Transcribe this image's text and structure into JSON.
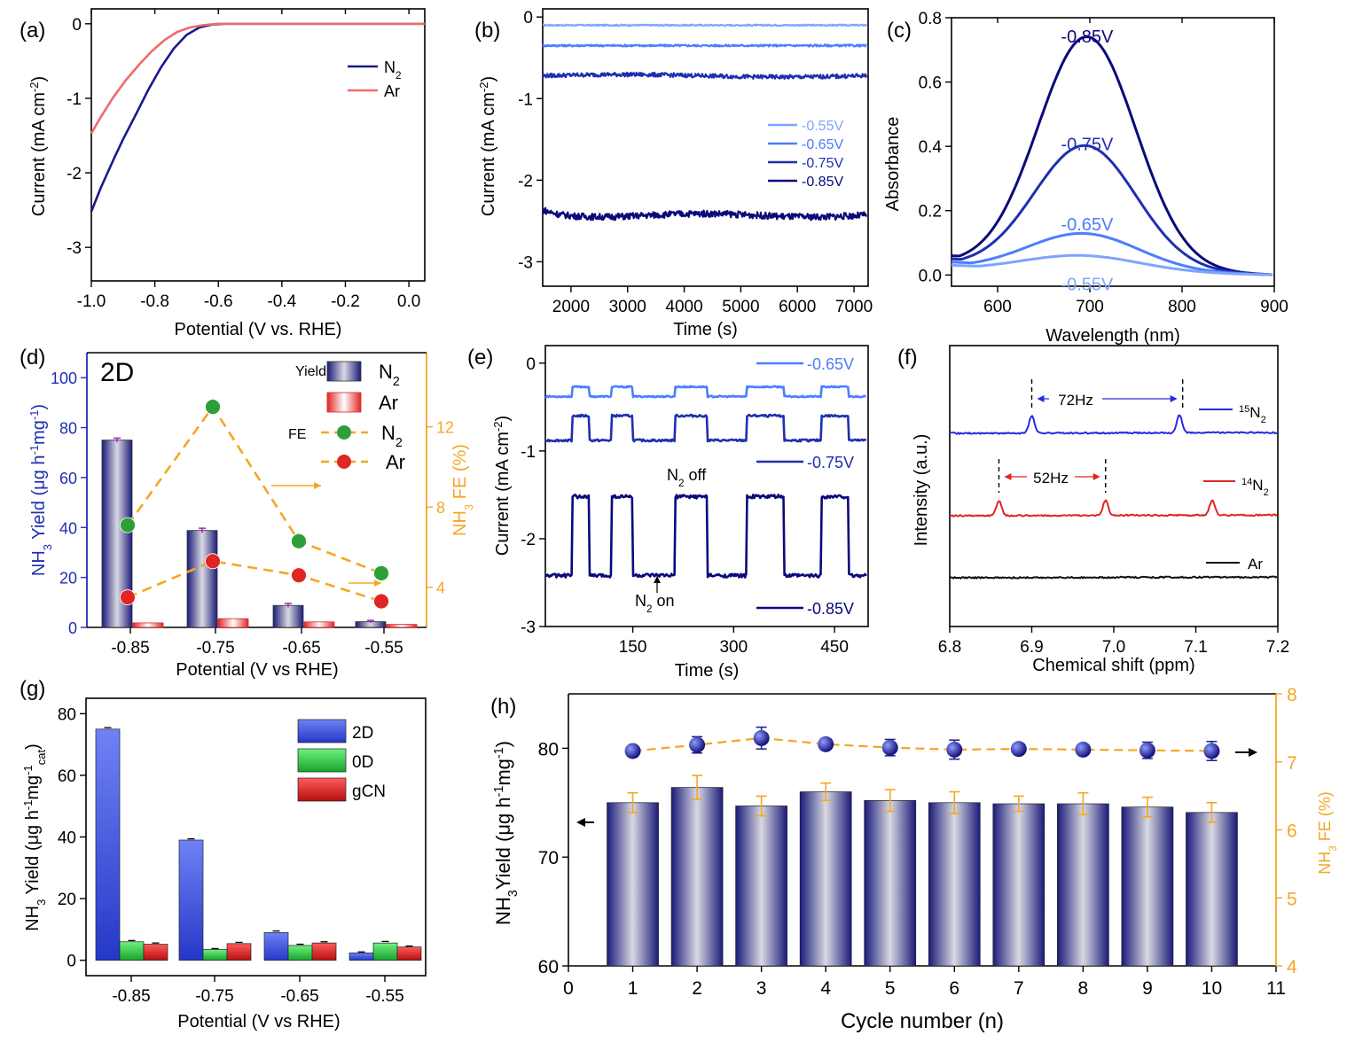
{
  "figure": {
    "colors": {
      "navy": "#1a1a8c",
      "blue_dark": "#0a0a7a",
      "blue_mid": "#1f2fb0",
      "blue_light": "#4d7cff",
      "blue_pale": "#7fa4ff",
      "salmon": "#f06a6a",
      "orange": "#f5a623",
      "green": "#2e9e3a",
      "red": "#e02525",
      "black": "#111111"
    }
  },
  "chart_data": [
    {
      "id": "a",
      "panel_label": "(a)",
      "type": "line",
      "xlabel": "Potential (V vs. RHE)",
      "ylabel": "Current (mA cm",
      "ylabel_sup": "-2",
      "xlim": [
        -1.0,
        0.05
      ],
      "ylim": [
        -3.45,
        0.2
      ],
      "xticks": [
        "-1.0",
        "-0.8",
        "-0.6",
        "-0.4",
        "-0.2",
        "0.0"
      ],
      "xtick_values": [
        -1.0,
        -0.8,
        -0.6,
        -0.4,
        -0.2,
        0.0
      ],
      "yticks": [
        "0",
        "-1",
        "-2",
        "-3"
      ],
      "ytick_values": [
        0,
        -1,
        -2,
        -3
      ],
      "legend": [
        {
          "label": "N",
          "sub": "2",
          "color": "#1a1a8c"
        },
        {
          "label": "Ar",
          "color": "#f06a6a"
        }
      ],
      "series": [
        {
          "name": "N2",
          "color": "#1a1a8c",
          "x": [
            -1.0,
            -0.97,
            -0.93,
            -0.9,
            -0.86,
            -0.82,
            -0.78,
            -0.74,
            -0.7,
            -0.66,
            -0.62,
            -0.58,
            -0.5,
            -0.4,
            -0.2,
            0.05
          ],
          "y": [
            -2.52,
            -2.2,
            -1.82,
            -1.55,
            -1.22,
            -0.88,
            -0.58,
            -0.33,
            -0.15,
            -0.05,
            -0.01,
            0.0,
            0.0,
            0.0,
            0.0,
            0.0
          ]
        },
        {
          "name": "Ar",
          "color": "#f06a6a",
          "x": [
            -1.0,
            -0.97,
            -0.93,
            -0.89,
            -0.85,
            -0.81,
            -0.77,
            -0.73,
            -0.69,
            -0.65,
            -0.6,
            -0.5,
            -0.4,
            -0.2,
            0.05
          ],
          "y": [
            -1.47,
            -1.25,
            -0.98,
            -0.75,
            -0.55,
            -0.37,
            -0.22,
            -0.11,
            -0.05,
            -0.02,
            0.0,
            0.0,
            0.0,
            0.0,
            0.0
          ]
        }
      ]
    },
    {
      "id": "b",
      "panel_label": "(b)",
      "type": "line",
      "xlabel": "Time (s)",
      "ylabel": "Current (mA cm",
      "ylabel_sup": "-2",
      "xlim": [
        1500,
        7250
      ],
      "ylim": [
        -3.3,
        0.1
      ],
      "xticks": [
        "2000",
        "3000",
        "4000",
        "5000",
        "6000",
        "7000"
      ],
      "xtick_values": [
        2000,
        3000,
        4000,
        5000,
        6000,
        7000
      ],
      "yticks": [
        "0",
        "-1",
        "-2",
        "-3"
      ],
      "ytick_values": [
        0,
        -1,
        -2,
        -3
      ],
      "legend": [
        {
          "label": "-0.55V",
          "color": "#7fa4ff"
        },
        {
          "label": "-0.65V",
          "color": "#4d7cff"
        },
        {
          "label": "-0.75V",
          "color": "#1f2fb0"
        },
        {
          "label": "-0.85V",
          "color": "#0a0a7a"
        }
      ],
      "series": [
        {
          "name": "-0.55V",
          "color": "#7fa4ff",
          "mean": -0.1,
          "noise": 0.008
        },
        {
          "name": "-0.65V",
          "color": "#4d7cff",
          "mean": -0.35,
          "noise": 0.012
        },
        {
          "name": "-0.75V",
          "color": "#1f2fb0",
          "mean": -0.72,
          "noise": 0.025
        },
        {
          "name": "-0.85V",
          "color": "#0a0a7a",
          "mean": -2.43,
          "noise": 0.04
        }
      ]
    },
    {
      "id": "c",
      "panel_label": "(c)",
      "type": "line",
      "xlabel": "Wavelength (nm)",
      "ylabel": "Absorbance",
      "xlim": [
        550,
        900
      ],
      "ylim": [
        -0.035,
        0.8
      ],
      "xticks": [
        "600",
        "700",
        "800",
        "900"
      ],
      "xtick_values": [
        600,
        700,
        800,
        900
      ],
      "yticks": [
        "0.0",
        "0.2",
        "0.4",
        "0.6",
        "0.8"
      ],
      "ytick_values": [
        0.0,
        0.2,
        0.4,
        0.6,
        0.8
      ],
      "series": [
        {
          "name": "-0.85V",
          "color": "#0a0a7a",
          "peak": 0.72,
          "center": 697,
          "width": 75,
          "base_left": 0.06
        },
        {
          "name": "-0.75V",
          "color": "#1f2fb0",
          "peak": 0.385,
          "center": 695,
          "width": 78,
          "base_left": 0.05
        },
        {
          "name": "-0.65V",
          "color": "#4d7cff",
          "peak": 0.115,
          "center": 693,
          "width": 85,
          "base_left": 0.04
        },
        {
          "name": "-0.55V",
          "color": "#7fa4ff",
          "peak": 0.05,
          "center": 690,
          "width": 90,
          "base_left": 0.03
        }
      ],
      "annotations": [
        {
          "text": "-0.85V",
          "color": "#0a0a7a",
          "x": 697,
          "y": 0.745
        },
        {
          "text": "-0.75V",
          "color": "#1f2fb0",
          "x": 697,
          "y": 0.41
        },
        {
          "text": "-0.65V",
          "color": "#4d7cff",
          "x": 697,
          "y": 0.16
        },
        {
          "text": "-0.55V",
          "color": "#7fa4ff",
          "x": 697,
          "y": -0.025
        }
      ]
    },
    {
      "id": "d",
      "panel_label": "(d)",
      "type": "bar",
      "inner_title": "2D",
      "xlabel": "Potential (V vs RHE)",
      "ylabel_left": "NH",
      "ylabel_left_sub": "3",
      "ylabel_left_rest": " Yield (μg h",
      "ylabel_left_sup1": "-1",
      "ylabel_left_rest2": "mg",
      "ylabel_left_sup2": "-1",
      "ylabel_left_end": ")",
      "ylabel_right": "NH",
      "ylabel_right_sub": "3",
      "ylabel_right_rest": " FE (%)",
      "categories": [
        "-0.85",
        "-0.75",
        "-0.65",
        "-0.55"
      ],
      "ylim_left": [
        0,
        110
      ],
      "yticks_left": [
        "0",
        "20",
        "40",
        "60",
        "80",
        "100"
      ],
      "ytick_values_left": [
        0,
        20,
        40,
        60,
        80,
        100
      ],
      "ylim_right": [
        2,
        15.7
      ],
      "yticks_right": [
        "4",
        "8",
        "12"
      ],
      "ytick_values_right": [
        4,
        8,
        12
      ],
      "series": [
        {
          "name": "N2",
          "kind": "bar",
          "values": [
            75,
            38.8,
            8.8,
            2.3
          ],
          "errors": [
            0.8,
            0.9,
            0.8,
            0.5
          ]
        },
        {
          "name": "Ar",
          "kind": "bar",
          "values": [
            1.8,
            3.5,
            2.2,
            1.2
          ],
          "errors": [
            0.3,
            0.4,
            0.3,
            0.3
          ]
        },
        {
          "name": "N2",
          "kind": "fe",
          "values": [
            7.1,
            13.0,
            6.3,
            4.7
          ],
          "errors": [
            0.4,
            0.4,
            0.4,
            0.4
          ]
        },
        {
          "name": "Ar",
          "kind": "fe",
          "values": [
            3.5,
            5.3,
            4.6,
            3.3
          ],
          "errors": [
            0.3,
            0.4,
            0.4,
            0.4
          ]
        }
      ],
      "legend": [
        {
          "group": "Yield",
          "label": "N",
          "sub": "2"
        },
        {
          "group": "",
          "label": "Ar"
        },
        {
          "group": "FE",
          "label": "N",
          "sub": "2"
        },
        {
          "group": "",
          "label": "Ar"
        }
      ]
    },
    {
      "id": "e",
      "panel_label": "(e)",
      "type": "line",
      "xlabel": "Time (s)",
      "ylabel": "Current (mA cm",
      "ylabel_sup": "-2",
      "xlim": [
        20,
        500
      ],
      "ylim": [
        -3.0,
        0.2
      ],
      "xticks": [
        "150",
        "300",
        "450"
      ],
      "xtick_values": [
        150,
        300,
        450
      ],
      "yticks": [
        "0",
        "-1",
        "-2",
        "-3"
      ],
      "ytick_values": [
        0,
        -1,
        -2,
        -3
      ],
      "series": [
        {
          "name": "-0.65V",
          "color": "#4d7cff",
          "low": -0.38,
          "high": -0.27,
          "noise": 0.008
        },
        {
          "name": "-0.75V",
          "color": "#1f2fb0",
          "low": -0.88,
          "high": -0.6,
          "noise": 0.012
        },
        {
          "name": "-0.85V",
          "color": "#0a0a7a",
          "low": -2.42,
          "high": -1.52,
          "noise": 0.02
        }
      ],
      "on_intervals": [
        [
          60,
          85
        ],
        [
          118,
          150
        ],
        [
          213,
          260
        ],
        [
          320,
          375
        ],
        [
          430,
          470
        ]
      ],
      "annotations": [
        {
          "text": "N",
          "sub": "2",
          "rest": " off"
        },
        {
          "text": "N",
          "sub": "2",
          "rest": " on"
        }
      ]
    },
    {
      "id": "f",
      "panel_label": "(f)",
      "type": "line",
      "xlabel": "Chemical shift (ppm)",
      "ylabel": "Intensity (a.u.)",
      "xlim": [
        6.8,
        7.2
      ],
      "xticks": [
        "6.8",
        "6.9",
        "7.0",
        "7.1",
        "7.2"
      ],
      "xtick_values": [
        6.8,
        6.9,
        7.0,
        7.1,
        7.2
      ],
      "series": [
        {
          "name": "15N2",
          "label_sup": "15",
          "label": "N",
          "label_sub": "2",
          "color": "#2a2ae0",
          "peaks": [
            6.9,
            7.08
          ]
        },
        {
          "name": "14N2",
          "label_sup": "14",
          "label": "N",
          "label_sub": "2",
          "color": "#e02525",
          "peaks": [
            6.86,
            6.99,
            7.12
          ]
        },
        {
          "name": "Ar",
          "label": "Ar",
          "color": "#111111",
          "peaks": []
        }
      ],
      "annotations": [
        {
          "text": "72Hz",
          "color": "#2a2ae0"
        },
        {
          "text": "52Hz",
          "color": "#e02525"
        }
      ]
    },
    {
      "id": "g",
      "panel_label": "(g)",
      "type": "bar",
      "xlabel": "Potential (V vs RHE)",
      "ylabel": "NH",
      "ylabel_sub": "3",
      "ylabel_rest": " Yield (μg h",
      "ylabel_sup1": "-1",
      "ylabel_rest2": "mg",
      "ylabel_sup2": "-1",
      "ylabel_sub2": "cat",
      "ylabel_end": ")",
      "categories": [
        "-0.85",
        "-0.75",
        "-0.65",
        "-0.55"
      ],
      "ylim": [
        -5,
        85
      ],
      "yticks": [
        "0",
        "20",
        "40",
        "60",
        "80"
      ],
      "ytick_values": [
        0,
        20,
        40,
        60,
        80
      ],
      "series": [
        {
          "name": "2D",
          "color": "#2a3ed6",
          "values": [
            75,
            39,
            9,
            2.4
          ],
          "errors": [
            0.5,
            0.4,
            0.5,
            0.3
          ]
        },
        {
          "name": "0D",
          "color": "#1fb83a",
          "values": [
            6,
            3.5,
            4.8,
            5.6
          ],
          "errors": [
            0.4,
            0.3,
            0.4,
            0.5
          ]
        },
        {
          "name": "gCN",
          "color": "#d01818",
          "values": [
            5.2,
            5.4,
            5.6,
            4.3
          ],
          "errors": [
            0.4,
            0.4,
            0.4,
            0.3
          ]
        }
      ]
    },
    {
      "id": "h",
      "panel_label": "(h)",
      "type": "bar",
      "xlabel": "Cycle number (n)",
      "ylabel_left": "NH",
      "ylabel_left_sub": "3",
      "ylabel_left_rest": "Yield (μg h",
      "ylabel_left_sup1": "-1",
      "ylabel_left_rest2": "mg",
      "ylabel_left_sup2": "-1",
      "ylabel_left_end": ")",
      "ylabel_right": "NH",
      "ylabel_right_sub": "3",
      "ylabel_right_rest": " FE (%)",
      "xlim": [
        0,
        11
      ],
      "xticks": [
        "0",
        "1",
        "2",
        "3",
        "4",
        "5",
        "6",
        "7",
        "8",
        "9",
        "10",
        "11"
      ],
      "xtick_values": [
        0,
        1,
        2,
        3,
        4,
        5,
        6,
        7,
        8,
        9,
        10,
        11
      ],
      "ylim_left": [
        60,
        85
      ],
      "yticks_left": [
        "60",
        "70",
        "80"
      ],
      "ytick_values_left": [
        60,
        70,
        80
      ],
      "ylim_right": [
        4,
        8
      ],
      "yticks_right": [
        "4",
        "5",
        "6",
        "7",
        "8"
      ],
      "ytick_values_right": [
        4,
        5,
        6,
        7,
        8
      ],
      "series": [
        {
          "name": "yield",
          "x": [
            1,
            2,
            3,
            4,
            5,
            6,
            7,
            8,
            9,
            10
          ],
          "values": [
            75,
            76.4,
            74.7,
            76,
            75.2,
            75,
            74.9,
            74.9,
            74.6,
            74.1
          ],
          "errors": [
            0.9,
            1.1,
            0.9,
            0.8,
            1.0,
            1.0,
            0.7,
            1.0,
            0.9,
            0.9
          ]
        },
        {
          "name": "FE",
          "x": [
            1,
            2,
            3,
            4,
            5,
            6,
            7,
            8,
            9,
            10
          ],
          "values": [
            7.16,
            7.25,
            7.35,
            7.26,
            7.21,
            7.18,
            7.19,
            7.18,
            7.17,
            7.16
          ],
          "errors": [
            0.07,
            0.12,
            0.16,
            0.07,
            0.12,
            0.14,
            0.07,
            0.07,
            0.12,
            0.14
          ]
        }
      ]
    }
  ]
}
